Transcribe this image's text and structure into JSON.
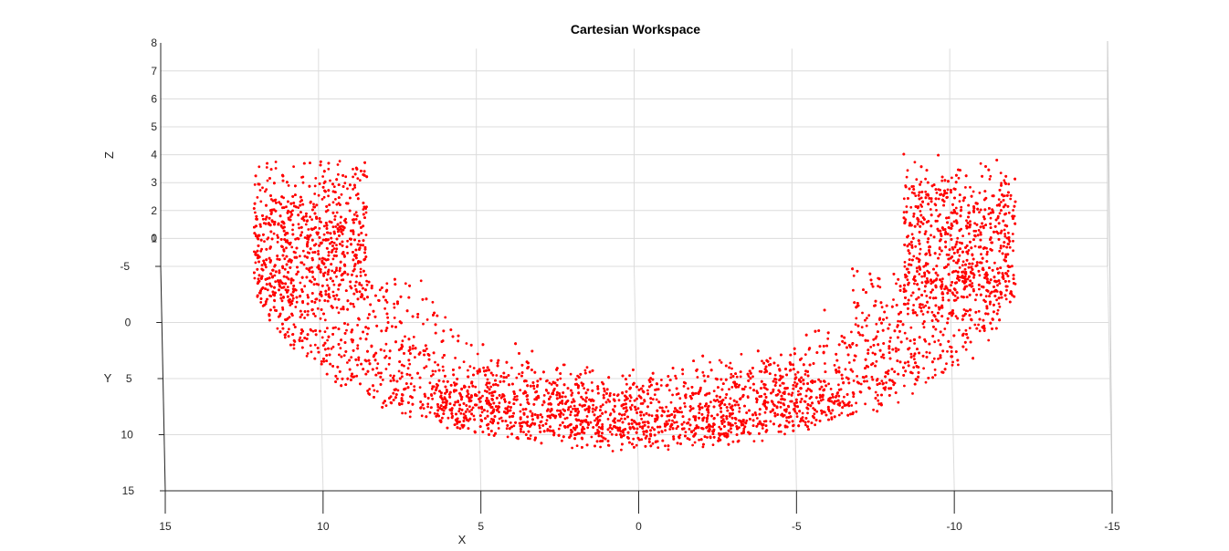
{
  "chart_data": {
    "type": "scatter",
    "title": "Cartesian Workspace",
    "xlabel": "X",
    "ylabel": "Y",
    "zlabel": "Z",
    "x_ticks": [
      "15",
      "10",
      "5",
      "0",
      "-5",
      "-10",
      "-15"
    ],
    "y_ticks": [
      "-5",
      "0",
      "5",
      "10",
      "15"
    ],
    "z_ticks": [
      "0",
      "1",
      "2",
      "3",
      "4",
      "5",
      "6",
      "7",
      "8"
    ],
    "xlim": [
      15,
      -15
    ],
    "ylim": [
      -5,
      15
    ],
    "zlim": [
      0,
      8
    ],
    "grid": true,
    "marker_color": "#ff0000",
    "description_points": {
      "shape": "half-annulus (U-shaped) point cloud",
      "x_range": [
        -12,
        12
      ],
      "y_range": [
        -6,
        11
      ],
      "inner_radius": 6.5,
      "outer_radius": 12
    }
  }
}
